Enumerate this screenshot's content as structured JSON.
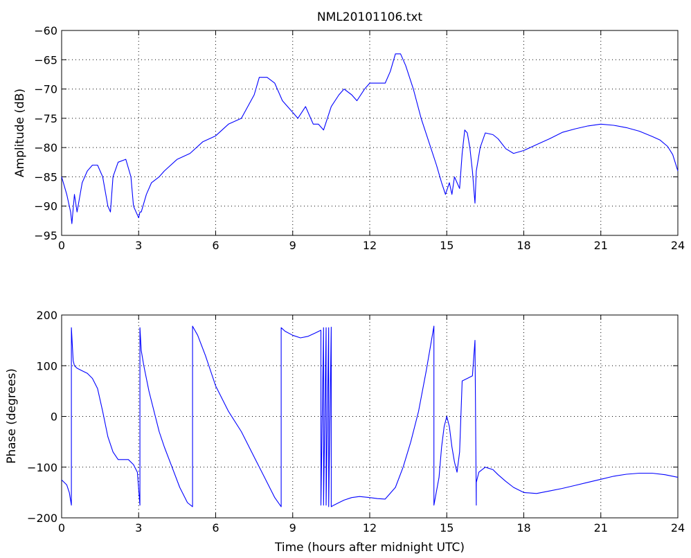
{
  "chart_data": [
    {
      "type": "line",
      "title": "NML20101106.txt",
      "xlabel": "",
      "ylabel": "Amplitude (dB)",
      "xlim": [
        0,
        24
      ],
      "ylim": [
        -95,
        -60
      ],
      "xticks": [
        0,
        3,
        6,
        9,
        12,
        15,
        18,
        21,
        24
      ],
      "yticks": [
        -95,
        -90,
        -85,
        -80,
        -75,
        -70,
        -65,
        -60
      ],
      "grid": true,
      "color": "#0000ff",
      "series": [
        {
          "x": [
            0,
            0.2,
            0.35,
            0.4,
            0.5,
            0.6,
            0.8,
            1.0,
            1.2,
            1.4,
            1.6,
            1.8,
            1.9,
            2.0,
            2.2,
            2.5,
            2.7,
            2.8,
            2.9,
            3.0,
            3.05,
            3.1,
            3.3,
            3.5,
            3.8,
            4.0,
            4.5,
            5.0,
            5.5,
            6.0,
            6.5,
            7.0,
            7.5,
            7.7,
            8.0,
            8.3,
            8.6,
            9.0,
            9.2,
            9.5,
            9.8,
            10.0,
            10.2,
            10.5,
            10.8,
            11.0,
            11.3,
            11.5,
            11.8,
            12.0,
            12.3,
            12.6,
            12.8,
            13.0,
            13.2,
            13.4,
            13.7,
            14.0,
            14.3,
            14.6,
            14.8,
            14.95,
            15.1,
            15.2,
            15.3,
            15.4,
            15.5,
            15.6,
            15.7,
            15.8,
            15.9,
            16.0,
            16.1,
            16.15,
            16.3,
            16.5,
            16.8,
            17.0,
            17.3,
            17.6,
            18.0,
            18.5,
            19.0,
            19.5,
            20.0,
            20.5,
            21.0,
            21.5,
            22.0,
            22.5,
            23.0,
            23.3,
            23.6,
            23.8,
            24.0
          ],
          "y": [
            -85,
            -88,
            -91,
            -93,
            -88,
            -91,
            -86,
            -84,
            -83,
            -83,
            -85,
            -90,
            -91,
            -85,
            -82.5,
            -82,
            -85,
            -90,
            -91,
            -92,
            -91,
            -91,
            -88,
            -86,
            -85,
            -84,
            -82,
            -81,
            -79,
            -78,
            -76,
            -75,
            -71,
            -68,
            -68,
            -69,
            -72,
            -74,
            -75,
            -73,
            -76,
            -76,
            -77,
            -73,
            -71,
            -70,
            -71,
            -72,
            -70,
            -69,
            -69,
            -69,
            -67,
            -64,
            -64,
            -66,
            -70,
            -75,
            -79,
            -83,
            -86,
            -88,
            -86,
            -88,
            -85,
            -86,
            -87,
            -81,
            -77,
            -77.5,
            -80,
            -84,
            -89.5,
            -84,
            -80,
            -77.5,
            -77.8,
            -78.5,
            -80.2,
            -81,
            -80.5,
            -79.5,
            -78.5,
            -77.4,
            -76.8,
            -76.3,
            -76,
            -76.2,
            -76.6,
            -77.2,
            -78.1,
            -78.7,
            -79.8,
            -81.2,
            -84
          ]
        }
      ]
    },
    {
      "type": "line",
      "title": "",
      "xlabel": "Time (hours after midnight UTC)",
      "ylabel": "Phase (degrees)",
      "xlim": [
        0,
        24
      ],
      "ylim": [
        -200,
        200
      ],
      "xticks": [
        0,
        3,
        6,
        9,
        12,
        15,
        18,
        21,
        24
      ],
      "yticks": [
        -200,
        -100,
        0,
        100,
        200
      ],
      "grid": true,
      "color": "#0000ff",
      "series": [
        {
          "x": [
            0,
            0.2,
            0.3,
            0.38,
            0.38,
            0.45,
            0.5,
            0.6,
            0.8,
            1.0,
            1.2,
            1.4,
            1.6,
            1.8,
            2.0,
            2.2,
            2.4,
            2.6,
            2.8,
            2.95,
            3.05,
            3.05,
            3.1,
            3.2,
            3.4,
            3.6,
            3.8,
            4.0,
            4.3,
            4.6,
            4.9,
            5.1,
            5.1,
            5.3,
            5.6,
            6.0,
            6.5,
            7.0,
            7.5,
            8.0,
            8.3,
            8.55,
            8.55,
            8.7,
            9.0,
            9.3,
            9.6,
            9.9,
            10.1,
            10.1,
            10.2,
            10.2,
            10.3,
            10.3,
            10.4,
            10.4,
            10.5,
            10.5,
            10.6,
            10.8,
            11.0,
            11.3,
            11.6,
            12.0,
            12.3,
            12.6,
            13.0,
            13.3,
            13.6,
            13.9,
            14.2,
            14.5,
            14.5,
            14.7,
            14.8,
            14.9,
            15.0,
            15.1,
            15.2,
            15.3,
            15.4,
            15.5,
            15.6,
            15.8,
            16.0,
            16.1,
            16.15,
            16.15,
            16.25,
            16.5,
            16.8,
            17.0,
            17.3,
            17.6,
            18.0,
            18.5,
            19.0,
            19.5,
            20.0,
            20.5,
            21.0,
            21.5,
            22.0,
            22.5,
            23.0,
            23.5,
            24.0
          ],
          "y": [
            -125,
            -135,
            -150,
            -175,
            175,
            110,
            100,
            95,
            90,
            85,
            75,
            55,
            10,
            -40,
            -70,
            -85,
            -85,
            -85,
            -95,
            -110,
            -175,
            175,
            130,
            100,
            50,
            10,
            -30,
            -60,
            -100,
            -140,
            -170,
            -178,
            178,
            160,
            120,
            60,
            10,
            -30,
            -80,
            -130,
            -160,
            -178,
            175,
            168,
            160,
            155,
            158,
            165,
            170,
            -175,
            175,
            -175,
            175,
            -175,
            175,
            -178,
            176,
            -178,
            -175,
            -170,
            -165,
            -160,
            -158,
            -160,
            -162,
            -163,
            -140,
            -100,
            -50,
            10,
            90,
            178,
            -175,
            -120,
            -60,
            -20,
            0,
            -20,
            -60,
            -90,
            -110,
            -70,
            70,
            75,
            80,
            150,
            -175,
            -130,
            -110,
            -100,
            -105,
            -115,
            -128,
            -140,
            -150,
            -152,
            -147,
            -142,
            -136,
            -130,
            -124,
            -118,
            -114,
            -112,
            -112,
            -115,
            -120
          ]
        }
      ]
    }
  ]
}
